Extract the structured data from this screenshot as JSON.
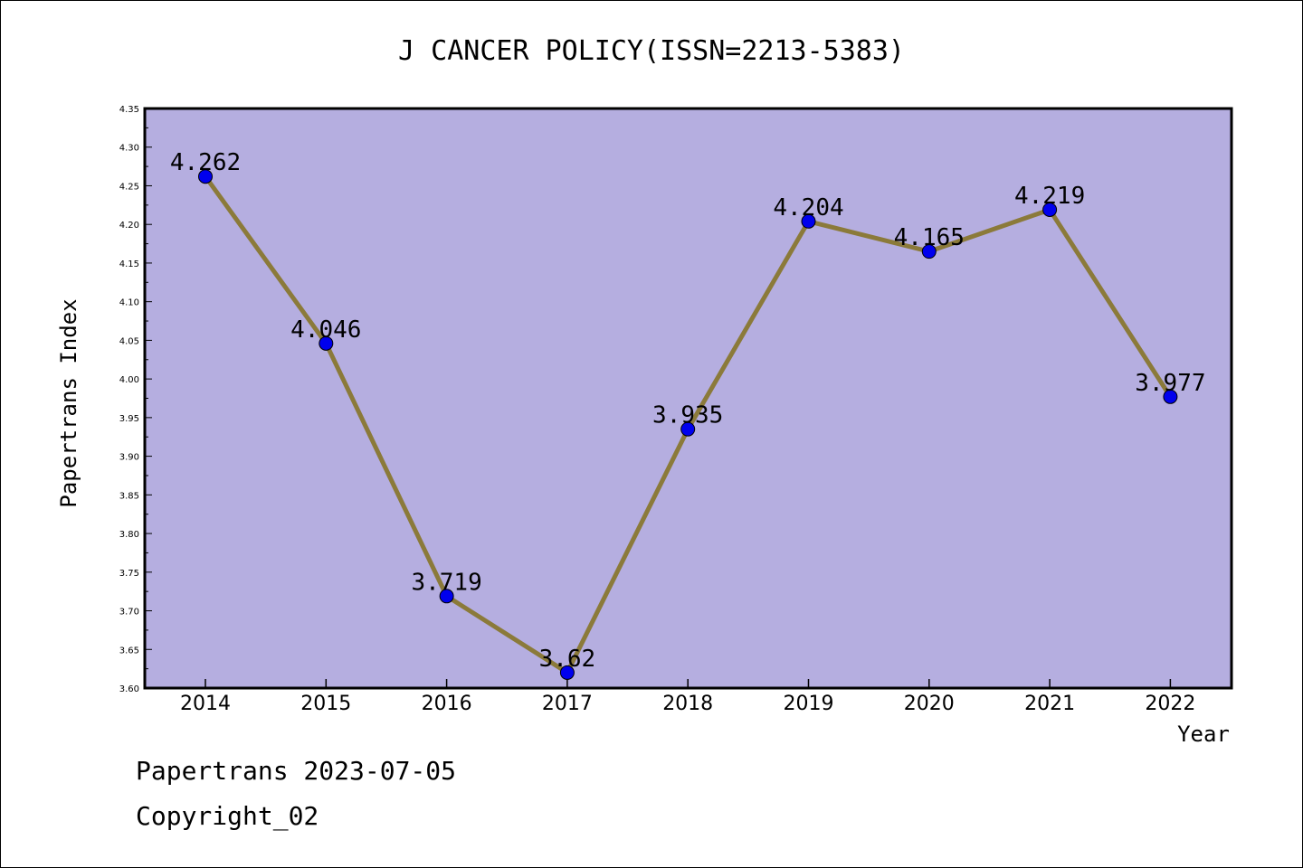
{
  "chart_data": {
    "type": "line",
    "title": "J CANCER POLICY(ISSN=2213-5383)",
    "xlabel": "Year",
    "ylabel": "Papertrans Index",
    "categories": [
      "2014",
      "2015",
      "2016",
      "2017",
      "2018",
      "2019",
      "2020",
      "2021",
      "2022"
    ],
    "series": [
      {
        "values": [
          4.262,
          4.046,
          3.719,
          3.62,
          3.935,
          4.204,
          4.165,
          4.219,
          3.977
        ]
      }
    ],
    "data_labels": [
      "4.262",
      "4.046",
      "3.719",
      "3.62",
      "3.935",
      "4.204",
      "4.165",
      "4.219",
      "3.977"
    ],
    "ylim": [
      3.6,
      4.35
    ],
    "yticks": [
      "3.60",
      "3.65",
      "3.70",
      "3.75",
      "3.80",
      "3.85",
      "3.90",
      "3.95",
      "4.00",
      "4.05",
      "4.10",
      "4.15",
      "4.20",
      "4.25",
      "4.30",
      "4.35"
    ],
    "grid": false,
    "colors": {
      "plot_bg": "#b5aee0",
      "line": "#8b7a3a",
      "marker": "#0000ee"
    }
  },
  "footer": {
    "line1": "Papertrans 2023-07-05",
    "line2": "Copyright_02"
  }
}
